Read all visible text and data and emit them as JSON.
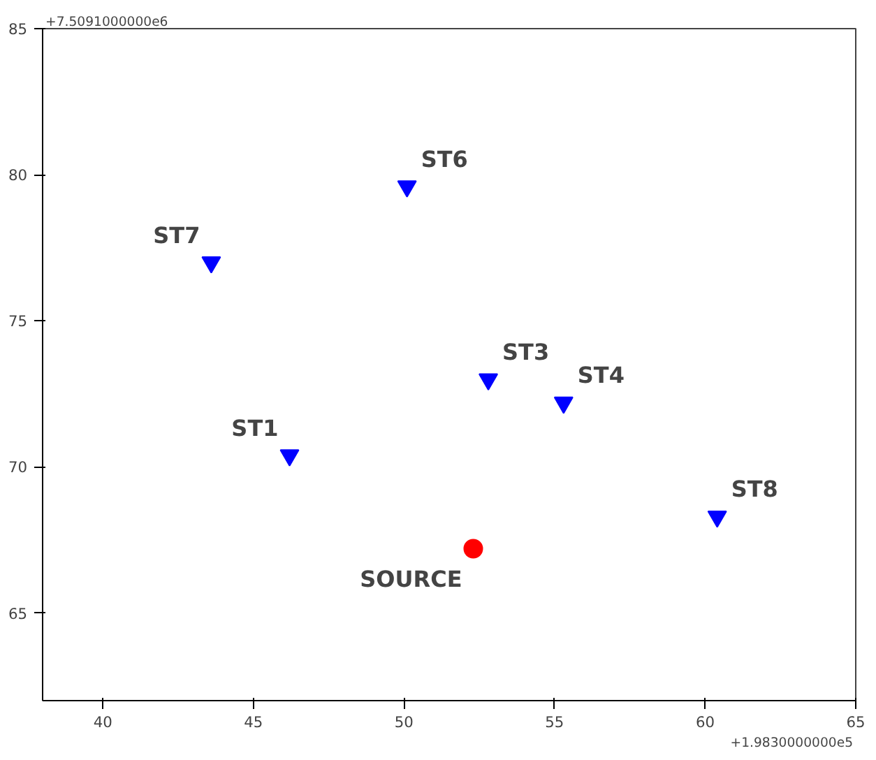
{
  "chart_data": {
    "type": "scatter",
    "series": [
      {
        "color": "#0000ff",
        "marker": "triangle",
        "x": [
          46.2,
          52.8,
          55.3,
          50.1,
          43.6,
          60.4
        ],
        "values": [
          70.4,
          73.0,
          72.2,
          79.6,
          77.0,
          68.3
        ]
      },
      {
        "name": "SOURCE",
        "color": "#ff0000",
        "marker": "circle",
        "x": [
          52.3
        ],
        "values": [
          67.2
        ]
      }
    ],
    "annotations": [
      "+7.5091000000e6",
      "+1.9830000000e5",
      {
        "text": "ST1",
        "x": 46.2,
        "y": 70.4
      },
      {
        "text": "ST3",
        "x": 52.8,
        "y": 73.0
      },
      {
        "text": "ST4",
        "x": 55.3,
        "y": 72.2
      },
      {
        "text": "ST6",
        "x": 50.1,
        "y": 79.6
      },
      {
        "text": "ST7",
        "x": 43.6,
        "y": 77.0
      },
      {
        "text": "ST8",
        "x": 60.4,
        "y": 68.3
      }
    ],
    "xlim": [
      38,
      65
    ],
    "ylim": [
      62,
      85
    ],
    "xticks": [
      40,
      45,
      50,
      55,
      60,
      65
    ],
    "yticks": [
      65,
      70,
      75,
      80,
      85
    ],
    "grid": false
  }
}
